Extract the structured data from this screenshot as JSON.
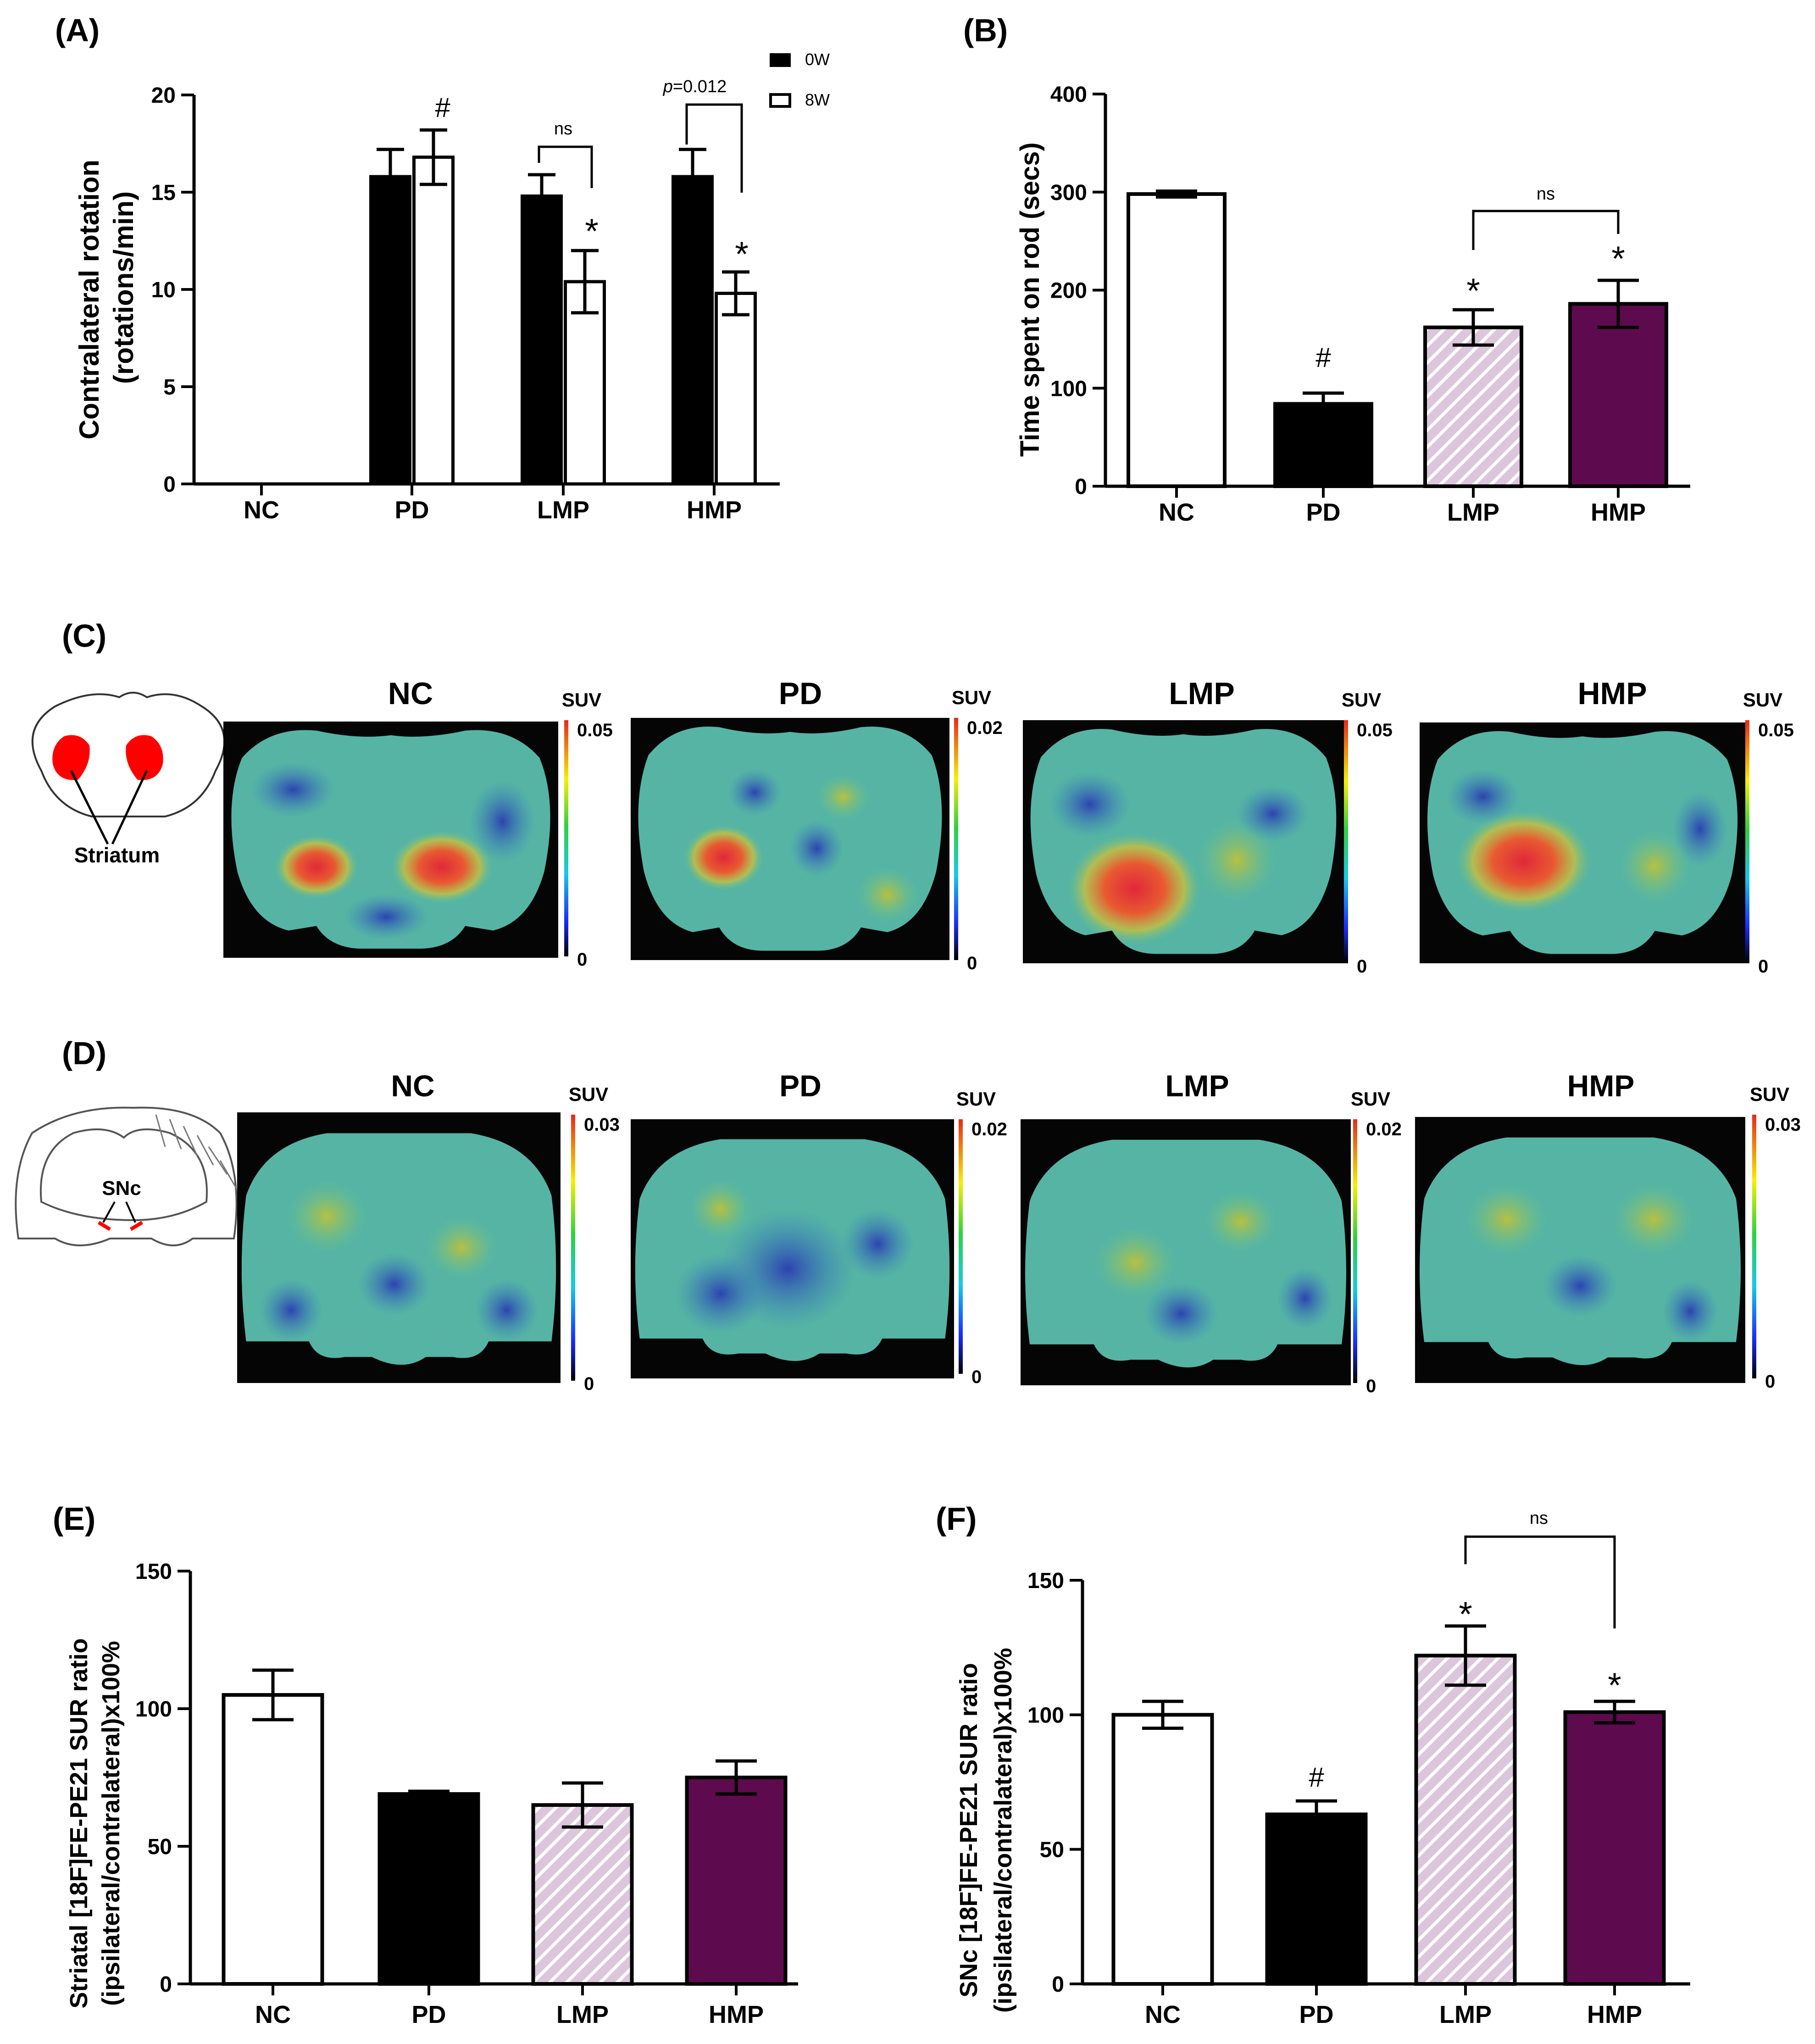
{
  "colors": {
    "black": "#000000",
    "white": "#ffffff",
    "lmp_bg": "#dcc6dc",
    "lmp_stripe": "#ffffff",
    "hmp": "#5e0a4e",
    "heat_low": "#3a56a8",
    "heat_mid": "#4fb89a",
    "heat_high": "#e03a2a"
  },
  "chart_data": [
    {
      "id": "A",
      "panel_label": "(A)",
      "type": "bar",
      "title": "",
      "ylabel_line1": "Contralateral rotation",
      "ylabel_line2": "(rotations/min)",
      "xlabel": "",
      "categories": [
        "NC",
        "PD",
        "LMP",
        "HMP"
      ],
      "ylim": [
        0,
        20
      ],
      "yticks": [
        0,
        5,
        10,
        15,
        20
      ],
      "series": [
        {
          "name": "0W",
          "fill": "black",
          "values": [
            0,
            15.8,
            14.8,
            15.8
          ],
          "errors": [
            0,
            1.4,
            1.1,
            1.4
          ]
        },
        {
          "name": "8W",
          "fill": "white",
          "values": [
            0,
            16.8,
            10.4,
            9.8
          ],
          "errors": [
            0,
            1.4,
            1.6,
            1.1
          ]
        }
      ],
      "legend": {
        "position": "top-right",
        "entries": [
          "0W",
          "8W"
        ]
      },
      "annotations": {
        "hash_pd": "#",
        "star_lmp": "*",
        "star_hmp": "*",
        "ns_lmp": "ns",
        "p_hmp_italic": "p",
        "p_hmp_rest": "=0.012"
      }
    },
    {
      "id": "B",
      "panel_label": "(B)",
      "type": "bar",
      "title": "",
      "ylabel": "Time spent on rod (secs)",
      "xlabel": "",
      "categories": [
        "NC",
        "PD",
        "LMP",
        "HMP"
      ],
      "ylim": [
        0,
        400
      ],
      "yticks": [
        0,
        100,
        200,
        300,
        400
      ],
      "values": [
        298,
        84,
        162,
        186
      ],
      "errors": [
        3,
        11,
        18,
        24
      ],
      "fills": [
        "white",
        "black",
        "lmp",
        "hmp"
      ],
      "annotations": {
        "hash_pd": "#",
        "star_lmp": "*",
        "star_hmp": "*",
        "ns": "ns"
      }
    },
    {
      "id": "E",
      "panel_label": "(E)",
      "type": "bar",
      "title": "",
      "ylabel_line1": "Striatal [18F]FE-PE21 SUR ratio",
      "ylabel_line2": "(ipsilateral/contralateral)x100%",
      "xlabel": "",
      "categories": [
        "NC",
        "PD",
        "LMP",
        "HMP"
      ],
      "ylim": [
        0,
        150
      ],
      "yticks": [
        0,
        50,
        100,
        150
      ],
      "values": [
        105,
        69,
        65,
        75
      ],
      "errors": [
        9,
        1,
        8,
        6
      ],
      "fills": [
        "white",
        "black",
        "lmp",
        "hmp"
      ],
      "annotations": {}
    },
    {
      "id": "F",
      "panel_label": "(F)",
      "type": "bar",
      "title": "",
      "ylabel_line1": "SNc [18F]FE-PE21 SUR ratio",
      "ylabel_line2": "(ipsilateral/contralateral)x100%",
      "xlabel": "",
      "categories": [
        "NC",
        "PD",
        "LMP",
        "HMP"
      ],
      "ylim": [
        0,
        150
      ],
      "yticks": [
        0,
        50,
        100,
        150
      ],
      "values": [
        100,
        63,
        122,
        101
      ],
      "errors": [
        5,
        5,
        11,
        4
      ],
      "fills": [
        "white",
        "black",
        "lmp",
        "hmp"
      ],
      "annotations": {
        "hash_pd": "#",
        "star_lmp": "*",
        "star_hmp": "*",
        "ns": "ns"
      }
    }
  ],
  "panel_C": {
    "label": "(C)",
    "schematic_label": "Striatum",
    "images": [
      {
        "title": "NC",
        "scale_label": "SUV",
        "max": "0.05",
        "min": "0"
      },
      {
        "title": "PD",
        "scale_label": "SUV",
        "max": "0.02",
        "min": "0"
      },
      {
        "title": "LMP",
        "scale_label": "SUV",
        "max": "0.05",
        "min": "0"
      },
      {
        "title": "HMP",
        "scale_label": "SUV",
        "max": "0.05",
        "min": "0"
      }
    ]
  },
  "panel_D": {
    "label": "(D)",
    "schematic_label": "SNc",
    "images": [
      {
        "title": "NC",
        "scale_label": "SUV",
        "max": "0.03",
        "min": "0"
      },
      {
        "title": "PD",
        "scale_label": "SUV",
        "max": "0.02",
        "min": "0"
      },
      {
        "title": "LMP",
        "scale_label": "SUV",
        "max": "0.02",
        "min": "0"
      },
      {
        "title": "HMP",
        "scale_label": "SUV",
        "max": "0.03",
        "min": "0"
      }
    ]
  }
}
